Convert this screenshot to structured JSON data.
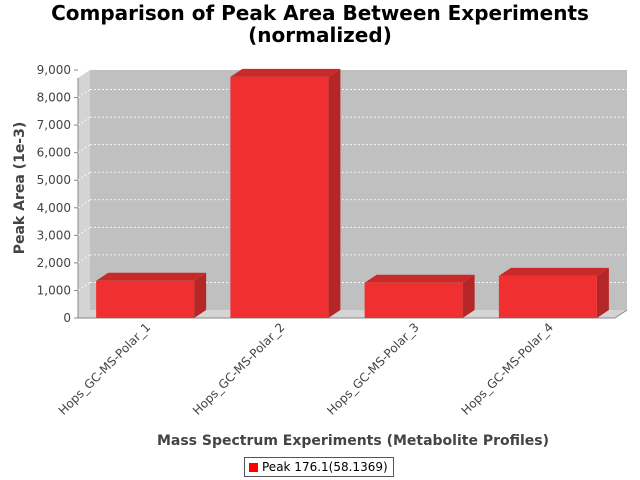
{
  "chart_data": {
    "type": "bar",
    "title": "Comparison of Peak Area Between Experiments (normalized)",
    "title_lines": [
      "Comparison of Peak Area Between Experiments",
      "(normalized)"
    ],
    "xlabel": "Mass Spectrum Experiments (Metabolite Profiles)",
    "ylabel": "Peak Area (1e-3)",
    "categories": [
      "Hops_GC-MS-Polar_1",
      "Hops_GC-MS-Polar_2",
      "Hops_GC-MS-Polar_3",
      "Hops_GC-MS-Polar_4"
    ],
    "series": [
      {
        "name": "Peak 176.1(58.1369)",
        "values": [
          1350,
          8750,
          1280,
          1530
        ]
      }
    ],
    "ylim": [
      0,
      9000
    ],
    "yticks": [
      0,
      1000,
      2000,
      3000,
      4000,
      5000,
      6000,
      7000,
      8000,
      9000
    ],
    "ytick_labels": [
      "0",
      "1,000",
      "2,000",
      "3,000",
      "4,000",
      "5,000",
      "6,000",
      "7,000",
      "8,000",
      "9,000"
    ],
    "grid": true,
    "legend": "bottom",
    "colors": {
      "bar": "#f03030",
      "bar_side": "#b52626",
      "bar_top": "#c82a2a",
      "plot_background": "#c0c0c0",
      "plot_wall": "#d4d4d4",
      "legend_swatch": "#ff0000"
    }
  }
}
